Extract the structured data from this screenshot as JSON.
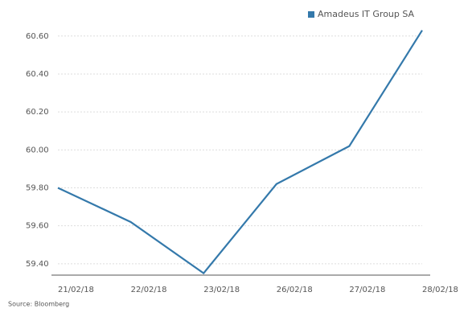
{
  "chart_data": {
    "type": "line",
    "categories": [
      "21/02/18",
      "22/02/18",
      "23/02/18",
      "26/02/18",
      "27/02/18",
      "28/02/18"
    ],
    "series": [
      {
        "name": "Amadeus IT Group SA",
        "color": "#3479ab",
        "values": [
          59.8,
          59.62,
          59.35,
          59.82,
          60.02,
          60.63
        ]
      }
    ],
    "ylim": [
      59.34,
      60.65
    ],
    "yticks": [
      {
        "value": 59.4,
        "label": "59.40"
      },
      {
        "value": 59.6,
        "label": "59.60"
      },
      {
        "value": 59.8,
        "label": "59.80"
      },
      {
        "value": 60.0,
        "label": "60.00"
      },
      {
        "value": 60.2,
        "label": "60.20"
      },
      {
        "value": 60.4,
        "label": "60.40"
      },
      {
        "value": 60.6,
        "label": "60.60"
      }
    ],
    "grid": true,
    "legend": "top-right",
    "source": "Source: Bloomberg"
  }
}
